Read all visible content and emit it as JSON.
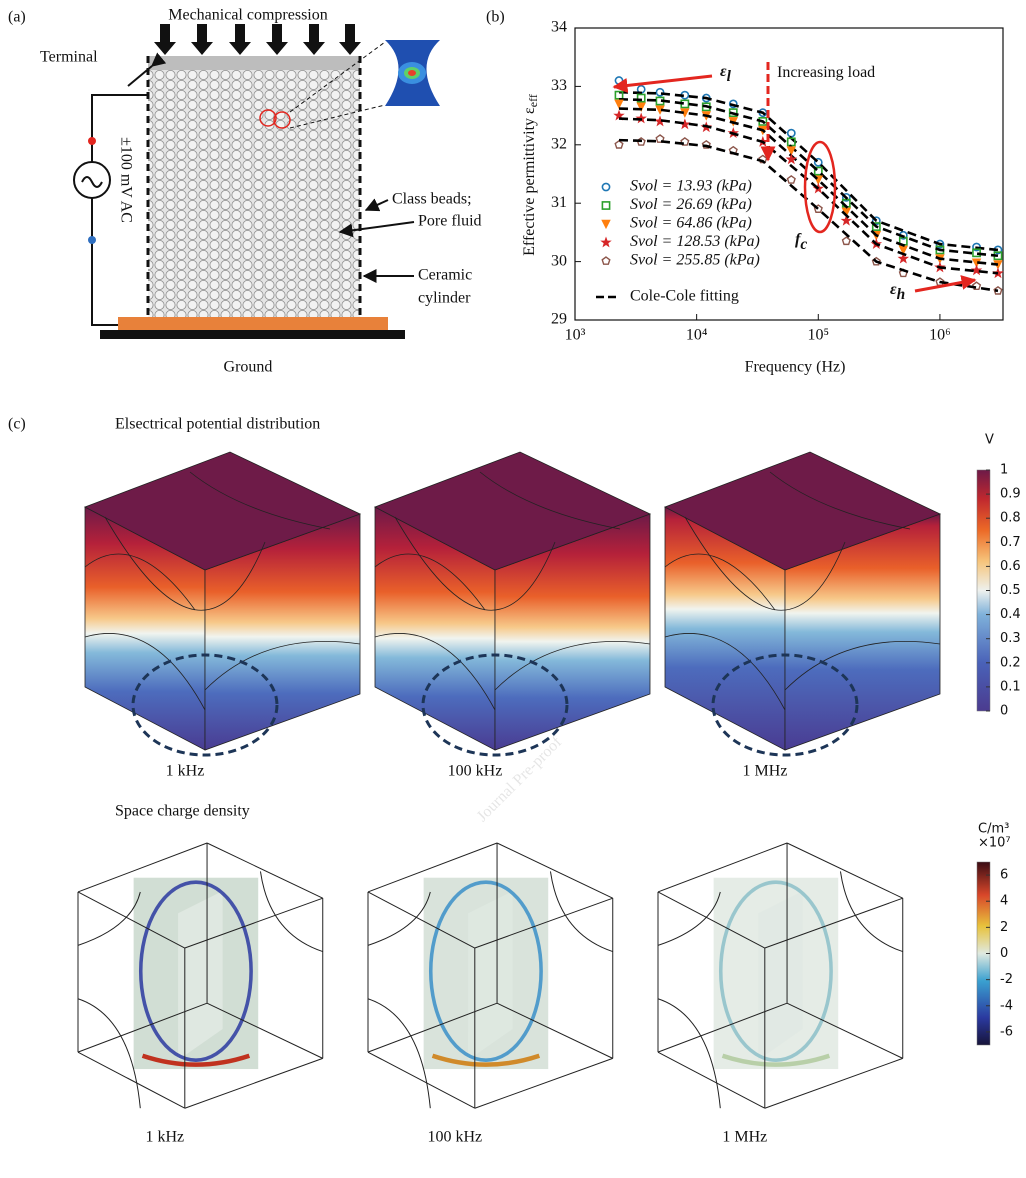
{
  "panel_a": {
    "label": "(a)",
    "title": "Mechanical compression",
    "terminal": "Terminal",
    "source": "±100 mV AC",
    "beads": "Class beads;",
    "fluid": "Pore fluid",
    "cylinder": [
      "Ceramic",
      "cylinder"
    ],
    "ground": "Ground"
  },
  "chart_data": {
    "type": "scatter",
    "label": "(b)",
    "x_label": "Frequency (Hz)",
    "y_label": {
      "text": "Effective permittivity ε",
      "sub": "eff"
    },
    "xscale": "log",
    "xlim": [
      1000,
      3300000
    ],
    "xticks": [
      {
        "value": 1000,
        "label": "10³"
      },
      {
        "value": 10000,
        "label": "10⁴"
      },
      {
        "value": 100000,
        "label": "10⁵"
      },
      {
        "value": 1000000,
        "label": "10⁶"
      }
    ],
    "ylim": [
      29,
      34
    ],
    "yticks": [
      29,
      30,
      31,
      32,
      33,
      34
    ],
    "x": [
      2300,
      3500,
      5000,
      8000,
      12000,
      20000,
      35000,
      60000,
      100000,
      170000,
      300000,
      500000,
      1000000,
      2000000,
      3000000
    ],
    "fit_x": [
      2300,
      5000,
      12000,
      35000,
      100000,
      300000,
      1000000,
      3000000
    ],
    "fit_name": "Cole-Cole fitting",
    "fit_color": "#000000",
    "series": [
      {
        "name": "Svol = 13.93 (kPa)",
        "color": "#1f77b4",
        "marker": "circle",
        "values": [
          33.1,
          32.95,
          32.9,
          32.85,
          32.8,
          32.7,
          32.55,
          32.2,
          31.7,
          31.1,
          30.7,
          30.45,
          30.3,
          30.25,
          30.2
        ],
        "fit": [
          32.9,
          32.88,
          32.8,
          32.55,
          31.7,
          30.7,
          30.3,
          30.2
        ]
      },
      {
        "name": "Svol = 26.69 (kPa)",
        "color": "#2ca02c",
        "marker": "square",
        "values": [
          32.85,
          32.8,
          32.75,
          32.7,
          32.65,
          32.55,
          32.4,
          32.05,
          31.55,
          31.0,
          30.6,
          30.35,
          30.2,
          30.15,
          30.1
        ],
        "fit": [
          32.78,
          32.76,
          32.66,
          32.4,
          31.55,
          30.6,
          30.2,
          30.1
        ]
      },
      {
        "name": "Svol = 64.86 (kPa)",
        "color": "#ff7f0e",
        "marker": "triangle",
        "values": [
          32.7,
          32.65,
          32.6,
          32.55,
          32.5,
          32.4,
          32.25,
          31.9,
          31.4,
          30.85,
          30.45,
          30.2,
          30.05,
          29.98,
          29.95
        ],
        "fit": [
          32.62,
          32.6,
          32.5,
          32.25,
          31.4,
          30.45,
          30.05,
          29.95
        ]
      },
      {
        "name": "Svol = 128.53 (kPa)",
        "color": "#d62728",
        "marker": "star",
        "values": [
          32.5,
          32.45,
          32.4,
          32.35,
          32.3,
          32.2,
          32.05,
          31.75,
          31.25,
          30.7,
          30.3,
          30.05,
          29.9,
          29.85,
          29.8
        ],
        "fit": [
          32.45,
          32.42,
          32.32,
          32.05,
          31.25,
          30.3,
          29.9,
          29.8
        ]
      },
      {
        "name": "Svol = 255.85 (kPa)",
        "color": "#8c564b",
        "marker": "pentagon",
        "values": [
          32.0,
          32.05,
          32.1,
          32.05,
          32.0,
          31.9,
          31.75,
          31.4,
          30.9,
          30.35,
          30.0,
          29.8,
          29.65,
          29.58,
          29.5
        ],
        "fit": [
          32.08,
          32.06,
          31.98,
          31.72,
          30.9,
          30.0,
          29.65,
          29.5
        ]
      }
    ],
    "annotations": [
      {
        "text": "ε",
        "sub": "l"
      },
      {
        "text": "Increasing load"
      },
      {
        "text": "f",
        "sub": "c"
      },
      {
        "text": "ε",
        "sub": "h"
      }
    ]
  },
  "panel_c": {
    "label": "(c)",
    "watermark": "Journal Pre-proof",
    "potential": {
      "title": "Elsectrical potential distribution",
      "unit": "V",
      "clim": [
        0,
        1
      ],
      "ticks": [
        0,
        0.1,
        0.2,
        0.3,
        0.4,
        0.5,
        0.6,
        0.7,
        0.8,
        0.9,
        1
      ],
      "labels": [
        "1 kHz",
        "100 kHz",
        "1 MHz"
      ]
    },
    "charge": {
      "title": "Space charge density",
      "unit": "C/m³",
      "scale": "×10⁷",
      "clim": [
        -7,
        7
      ],
      "ticks": [
        -6,
        -4,
        -2,
        0,
        2,
        4,
        6
      ],
      "labels": [
        "1 kHz",
        "100 kHz",
        "1 MHz"
      ]
    }
  }
}
